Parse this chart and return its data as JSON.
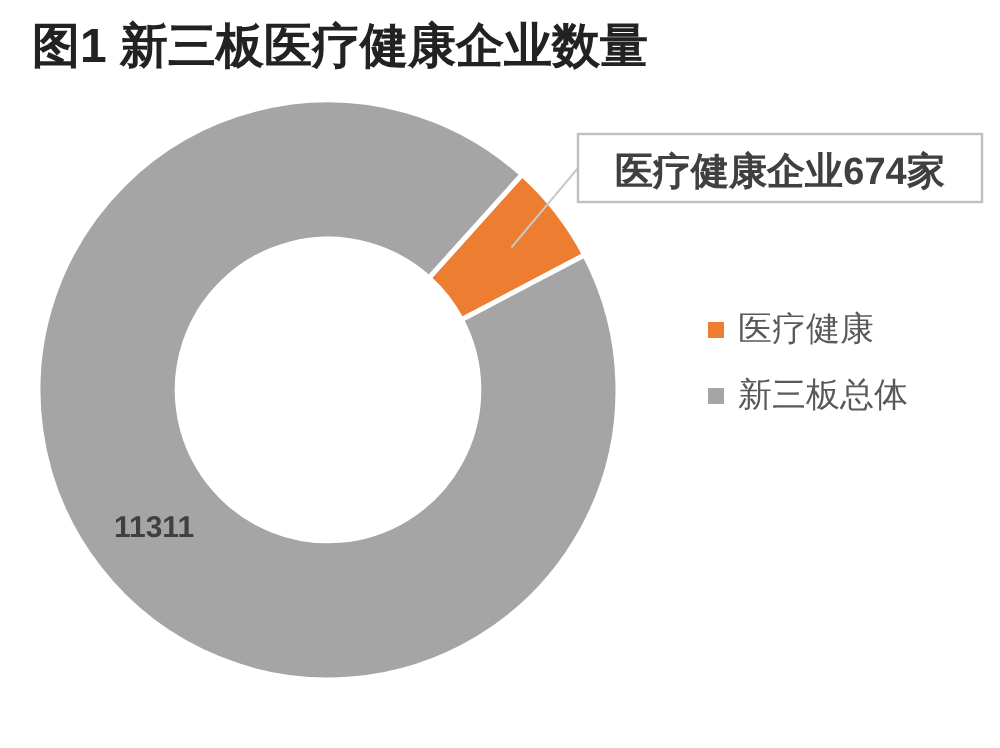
{
  "chart_data": {
    "type": "donut",
    "title": "图1  新三板医疗健康企业数量",
    "categories": [
      "医疗健康",
      "新三板总体"
    ],
    "values": [
      674,
      11311
    ],
    "colors": [
      "#ed7d31",
      "#a5a5a5"
    ],
    "value_labels": [
      "医疗健康企业674家",
      "11311"
    ],
    "legend": "right"
  }
}
